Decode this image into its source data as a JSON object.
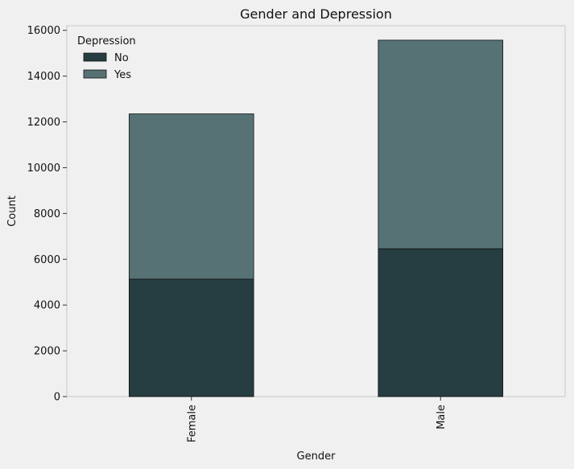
{
  "chart_data": {
    "type": "bar",
    "stacked": true,
    "title": "Gender and Depression",
    "xlabel": "Gender",
    "ylabel": "Count",
    "categories": [
      "Female",
      "Male"
    ],
    "series": [
      {
        "name": "No",
        "values": [
          5130,
          6460
        ],
        "color": "#263d41"
      },
      {
        "name": "Yes",
        "values": [
          7220,
          9110
        ],
        "color": "#567274"
      }
    ],
    "ylim": [
      0,
      16200
    ],
    "yticks": [
      0,
      2000,
      4000,
      6000,
      8000,
      10000,
      12000,
      14000,
      16000
    ],
    "legend": {
      "title": "Depression",
      "placement": "top-left"
    },
    "grid": false,
    "x_tick_rotation": "vertical"
  }
}
